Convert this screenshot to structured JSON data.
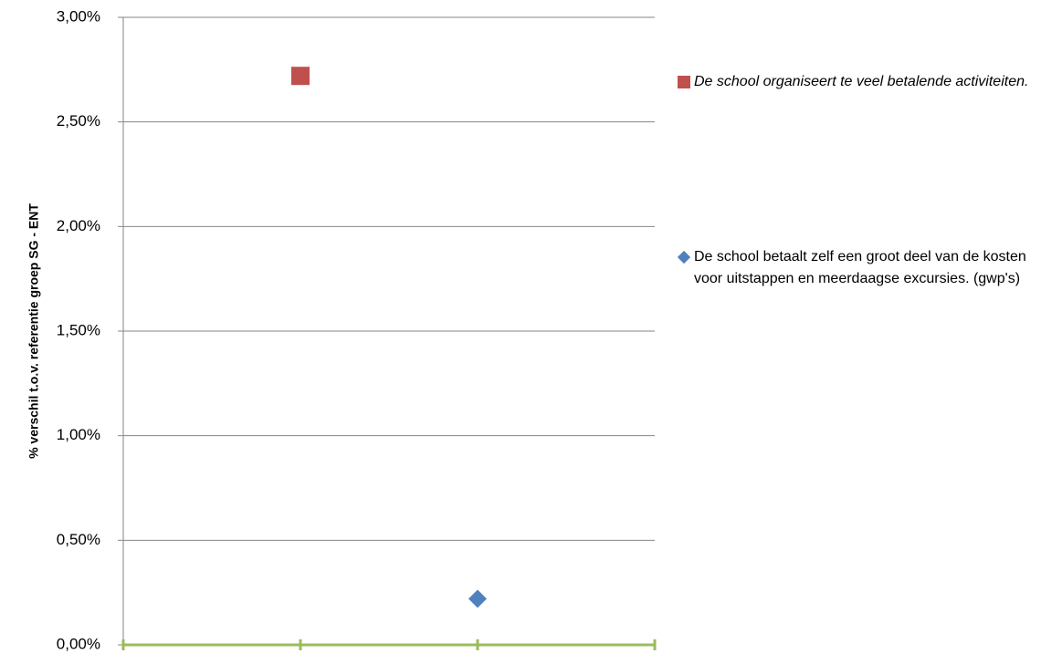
{
  "chart_data": {
    "type": "scatter",
    "y_label": "% verschil t.o.v. referentie  groep SG - ENT",
    "xlim": [
      0,
      3
    ],
    "xticks": [
      0,
      1,
      2,
      3
    ],
    "ylim": [
      0,
      3
    ],
    "yticks": [
      {
        "value": 0,
        "label": "0,00%"
      },
      {
        "value": 0.5,
        "label": "0,50%"
      },
      {
        "value": 1,
        "label": "1,00%"
      },
      {
        "value": 1.5,
        "label": "1,50%"
      },
      {
        "value": 2,
        "label": "2,00%"
      },
      {
        "value": 2.5,
        "label": "2,50%"
      },
      {
        "value": 3,
        "label": "3,00%"
      }
    ],
    "grid": true,
    "legend": "right",
    "series": [
      {
        "name": "De school organiseert te veel betalende activiteiten.",
        "color": "#c0504d",
        "marker": "square",
        "x": [
          1
        ],
        "values": [
          2.72
        ]
      },
      {
        "name": "De school betaalt zelf een groot deel van de kosten voor uitstappen en meerdaagse excursies. (gwp's)",
        "color": "#4f81bd",
        "marker": "diamond",
        "x": [
          2
        ],
        "values": [
          0.22
        ]
      }
    ]
  }
}
